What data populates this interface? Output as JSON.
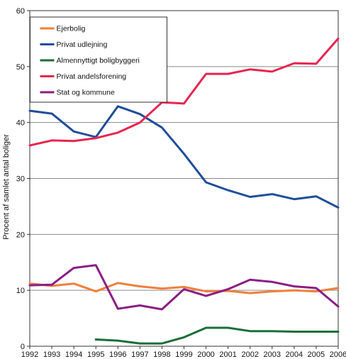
{
  "chart_data": {
    "type": "line",
    "title": "",
    "xlabel": "",
    "ylabel": "Procent af samlet antal boliger",
    "x": [
      1992,
      1993,
      1994,
      1995,
      1996,
      1997,
      1998,
      1999,
      2000,
      2001,
      2002,
      2003,
      2004,
      2005,
      2006
    ],
    "ylim": [
      0,
      60
    ],
    "yticks": [
      0,
      10,
      20,
      30,
      40,
      50,
      60
    ],
    "grid": "horizontal",
    "legend_position": "top-left",
    "series": [
      {
        "name": "Ejerbolig",
        "color": "#f07f3c",
        "values": [
          11.2,
          10.8,
          11.2,
          9.8,
          11.3,
          10.7,
          10.3,
          10.6,
          9.8,
          9.9,
          9.5,
          9.8,
          10.0,
          9.8,
          10.4
        ]
      },
      {
        "name": "Privat udlejning",
        "color": "#1f4e99",
        "values": [
          42.1,
          41.6,
          38.4,
          37.4,
          42.9,
          41.5,
          39.1,
          34.4,
          29.3,
          27.9,
          26.7,
          27.2,
          26.3,
          26.8,
          24.8
        ]
      },
      {
        "name": "Almennyttigt boligbyggeri",
        "color": "#1a6e3a",
        "values": [
          null,
          null,
          null,
          1.2,
          1.0,
          0.5,
          0.5,
          1.6,
          3.3,
          3.3,
          2.7,
          2.7,
          2.6,
          2.6,
          2.6
        ]
      },
      {
        "name": "Privat andelsforening",
        "color": "#e8254f",
        "values": [
          35.9,
          36.8,
          36.7,
          37.2,
          38.2,
          40.0,
          43.6,
          43.4,
          48.7,
          48.7,
          49.5,
          49.1,
          50.6,
          50.5,
          55.0
        ]
      },
      {
        "name": "Stat og kommune",
        "color": "#8a1e84",
        "values": [
          10.9,
          11.0,
          14.0,
          14.5,
          6.7,
          7.3,
          6.6,
          10.2,
          9.0,
          10.2,
          11.9,
          11.5,
          10.7,
          10.4,
          7.1
        ]
      }
    ]
  }
}
